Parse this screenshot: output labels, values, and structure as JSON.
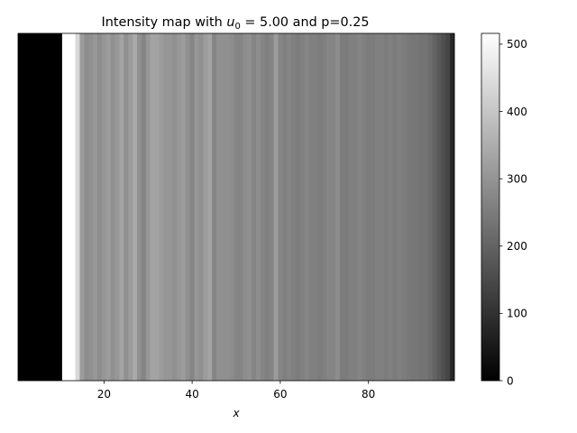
{
  "chart_data": {
    "type": "heatmap",
    "title_prefix": "Intensity map with ",
    "title_math_var": "u",
    "title_math_sub": "0",
    "title_math_rest": " = 5.00",
    "title_suffix": " and p=0.25",
    "xlabel": "x",
    "ylabel": "",
    "xlim": [
      1,
      99
    ],
    "x_ticks": [
      20,
      40,
      60,
      80
    ],
    "y_ticks_visible": false,
    "colormap": "gray",
    "colorbar": {
      "vmin": 0,
      "vmax": 516,
      "ticks": [
        0,
        100,
        200,
        300,
        400,
        500
      ]
    },
    "x": [
      1,
      2,
      3,
      4,
      5,
      6,
      7,
      8,
      9,
      10,
      11,
      12,
      13,
      14,
      15,
      16,
      17,
      18,
      19,
      20,
      21,
      22,
      23,
      24,
      25,
      26,
      27,
      28,
      29,
      30,
      31,
      32,
      33,
      34,
      35,
      36,
      37,
      38,
      39,
      40,
      41,
      42,
      43,
      44,
      45,
      46,
      47,
      48,
      49,
      50,
      51,
      52,
      53,
      54,
      55,
      56,
      57,
      58,
      59,
      60,
      61,
      62,
      63,
      64,
      65,
      66,
      67,
      68,
      69,
      70,
      71,
      72,
      73,
      74,
      75,
      76,
      77,
      78,
      79,
      80,
      81,
      82,
      83,
      84,
      85,
      86,
      87,
      88,
      89,
      90,
      91,
      92,
      93,
      94,
      95,
      96,
      97,
      98,
      99
    ],
    "values": [
      0,
      0,
      0,
      0,
      0,
      0,
      0,
      0,
      0,
      0,
      516,
      516,
      516,
      440,
      316,
      285,
      292,
      305,
      285,
      303,
      316,
      292,
      305,
      330,
      292,
      316,
      343,
      292,
      270,
      305,
      330,
      330,
      316,
      303,
      303,
      292,
      305,
      316,
      292,
      270,
      303,
      292,
      316,
      330,
      270,
      292,
      292,
      292,
      285,
      270,
      270,
      285,
      292,
      270,
      285,
      270,
      258,
      270,
      316,
      270,
      258,
      270,
      258,
      250,
      258,
      270,
      258,
      258,
      250,
      258,
      270,
      270,
      285,
      250,
      250,
      258,
      258,
      270,
      258,
      250,
      250,
      258,
      258,
      250,
      258,
      250,
      258,
      250,
      245,
      240,
      240,
      235,
      235,
      220,
      200,
      180,
      160,
      140,
      80
    ]
  }
}
